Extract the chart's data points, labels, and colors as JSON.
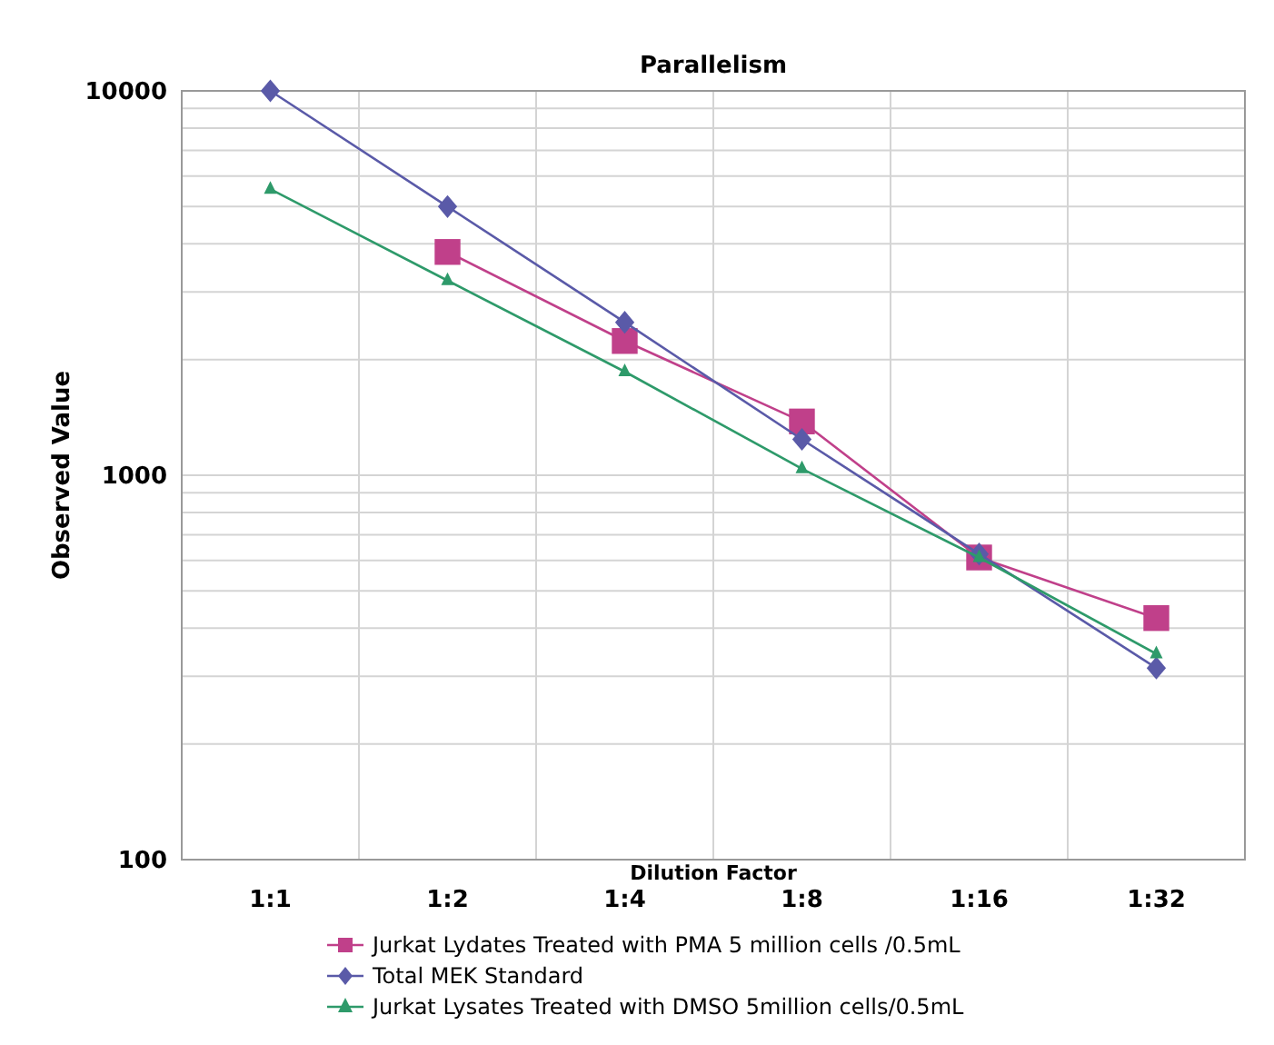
{
  "chart_data": {
    "type": "line",
    "title": "Parallelism",
    "xlabel": "Dilution Factor",
    "ylabel": "Observed Value",
    "categories": [
      "1:1",
      "1:2",
      "1:4",
      "1:8",
      "1:16",
      "1:32"
    ],
    "series": [
      {
        "name": "Jurkat Lydates Treated with PMA 5 million cells /0.5mL",
        "color": "#c0408a",
        "marker": "square",
        "values": [
          null,
          3810,
          2235,
          1380,
          611,
          425
        ]
      },
      {
        "name": "Total MEK Standard",
        "color": "#5a5aa8",
        "marker": "diamond",
        "values": [
          10000,
          5000,
          2500,
          1240,
          624,
          315
        ]
      },
      {
        "name": "Jurkat Lysates Treated with DMSO 5million cells/0.5mL",
        "color": "#2e9a6a",
        "marker": "triangle",
        "values": [
          5550,
          3210,
          1860,
          1040,
          611,
          343
        ]
      }
    ],
    "log": "y",
    "ylim": [
      100,
      10000
    ],
    "yticks": [
      100,
      {
        "value": 200,
        "label": null
      },
      {
        "value": 300,
        "label": null
      },
      {
        "value": 400,
        "label": null
      },
      {
        "value": 500,
        "label": null
      },
      {
        "value": 600,
        "label": null
      },
      {
        "value": 700,
        "label": null
      },
      {
        "value": 800,
        "label": null
      },
      {
        "value": 900,
        "label": null
      },
      1000,
      {
        "value": 2000,
        "label": null
      },
      {
        "value": 3000,
        "label": null
      },
      {
        "value": 4000,
        "label": null
      },
      {
        "value": 5000,
        "label": null
      },
      {
        "value": 6000,
        "label": null
      },
      {
        "value": 7000,
        "label": null
      },
      {
        "value": 8000,
        "label": null
      },
      {
        "value": 9000,
        "label": null
      },
      10000
    ],
    "grid": true,
    "legend": "bottom",
    "line_style": "solid"
  }
}
